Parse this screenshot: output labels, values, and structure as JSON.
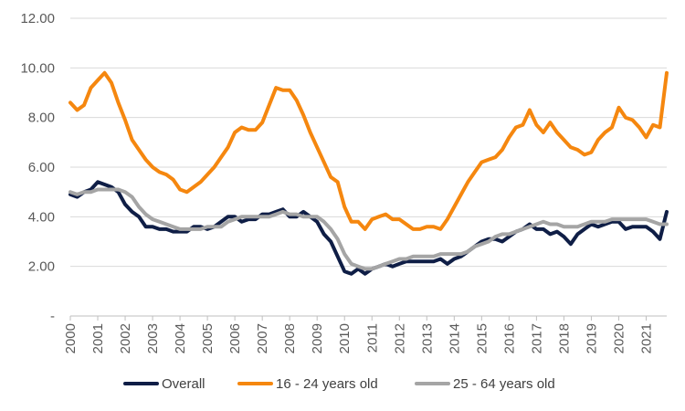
{
  "chart_data": {
    "type": "line",
    "title": "",
    "xlabel": "",
    "ylabel": "",
    "xlim": [
      2000,
      2021.75
    ],
    "ylim": [
      0,
      12
    ],
    "grid": "horizontal",
    "legend_position": "bottom",
    "y_tick_labels": [
      "-",
      "2.00",
      "4.00",
      "6.00",
      "8.00",
      "10.00",
      "12.00"
    ],
    "y_tick_values": [
      0,
      2,
      4,
      6,
      8,
      10,
      12
    ],
    "x_tick_labels": [
      "2000",
      "2001",
      "2002",
      "2003",
      "2004",
      "2005",
      "2006",
      "2007",
      "2008",
      "2009",
      "2010",
      "2011",
      "2012",
      "2013",
      "2014",
      "2015",
      "2016",
      "2017",
      "2018",
      "2019",
      "2020",
      "2021"
    ],
    "series": [
      {
        "name": "Overall",
        "color": "#0f1e46",
        "x": [
          2000,
          2000.25,
          2000.5,
          2000.75,
          2001,
          2001.25,
          2001.5,
          2001.75,
          2002,
          2002.25,
          2002.5,
          2002.75,
          2003,
          2003.25,
          2003.5,
          2003.75,
          2004,
          2004.25,
          2004.5,
          2004.75,
          2005,
          2005.25,
          2005.5,
          2005.75,
          2006,
          2006.25,
          2006.5,
          2006.75,
          2007,
          2007.25,
          2007.5,
          2007.75,
          2008,
          2008.25,
          2008.5,
          2008.75,
          2009,
          2009.25,
          2009.5,
          2009.75,
          2010,
          2010.25,
          2010.5,
          2010.75,
          2011,
          2011.25,
          2011.5,
          2011.75,
          2012,
          2012.25,
          2012.5,
          2012.75,
          2013,
          2013.25,
          2013.5,
          2013.75,
          2014,
          2014.25,
          2014.5,
          2014.75,
          2015,
          2015.25,
          2015.5,
          2015.75,
          2016,
          2016.25,
          2016.5,
          2016.75,
          2017,
          2017.25,
          2017.5,
          2017.75,
          2018,
          2018.25,
          2018.5,
          2018.75,
          2019,
          2019.25,
          2019.5,
          2019.75,
          2020,
          2020.25,
          2020.5,
          2020.75,
          2021,
          2021.25,
          2021.5,
          2021.75
        ],
        "values": [
          4.9,
          4.8,
          5.0,
          5.1,
          5.4,
          5.3,
          5.2,
          5.0,
          4.5,
          4.2,
          4.0,
          3.6,
          3.6,
          3.5,
          3.5,
          3.4,
          3.4,
          3.4,
          3.6,
          3.6,
          3.5,
          3.6,
          3.8,
          4.0,
          4.0,
          3.8,
          3.9,
          3.9,
          4.1,
          4.1,
          4.2,
          4.3,
          4.0,
          4.0,
          4.2,
          4.0,
          3.8,
          3.3,
          3.0,
          2.4,
          1.8,
          1.7,
          1.9,
          1.7,
          1.9,
          2.0,
          2.1,
          2.0,
          2.1,
          2.2,
          2.2,
          2.2,
          2.2,
          2.2,
          2.3,
          2.1,
          2.3,
          2.4,
          2.6,
          2.8,
          3.0,
          3.1,
          3.1,
          3.0,
          3.2,
          3.4,
          3.5,
          3.7,
          3.5,
          3.5,
          3.3,
          3.4,
          3.2,
          2.9,
          3.3,
          3.5,
          3.7,
          3.6,
          3.7,
          3.8,
          3.8,
          3.5,
          3.6,
          3.6,
          3.6,
          3.4,
          3.1,
          4.2
        ]
      },
      {
        "name": "16 - 24 years old",
        "color": "#f5870f",
        "x": [
          2000,
          2000.25,
          2000.5,
          2000.75,
          2001,
          2001.25,
          2001.5,
          2001.75,
          2002,
          2002.25,
          2002.5,
          2002.75,
          2003,
          2003.25,
          2003.5,
          2003.75,
          2004,
          2004.25,
          2004.5,
          2004.75,
          2005,
          2005.25,
          2005.5,
          2005.75,
          2006,
          2006.25,
          2006.5,
          2006.75,
          2007,
          2007.25,
          2007.5,
          2007.75,
          2008,
          2008.25,
          2008.5,
          2008.75,
          2009,
          2009.25,
          2009.5,
          2009.75,
          2010,
          2010.25,
          2010.5,
          2010.75,
          2011,
          2011.25,
          2011.5,
          2011.75,
          2012,
          2012.25,
          2012.5,
          2012.75,
          2013,
          2013.25,
          2013.5,
          2013.75,
          2014,
          2014.25,
          2014.5,
          2014.75,
          2015,
          2015.25,
          2015.5,
          2015.75,
          2016,
          2016.25,
          2016.5,
          2016.75,
          2017,
          2017.25,
          2017.5,
          2017.75,
          2018,
          2018.25,
          2018.5,
          2018.75,
          2019,
          2019.25,
          2019.5,
          2019.75,
          2020,
          2020.25,
          2020.5,
          2020.75,
          2021,
          2021.25,
          2021.5,
          2021.75
        ],
        "values": [
          8.6,
          8.3,
          8.5,
          9.2,
          9.5,
          9.8,
          9.4,
          8.6,
          7.9,
          7.1,
          6.7,
          6.3,
          6.0,
          5.8,
          5.7,
          5.5,
          5.1,
          5.0,
          5.2,
          5.4,
          5.7,
          6.0,
          6.4,
          6.8,
          7.4,
          7.6,
          7.5,
          7.5,
          7.8,
          8.5,
          9.2,
          9.1,
          9.1,
          8.7,
          8.1,
          7.4,
          6.8,
          6.2,
          5.6,
          5.4,
          4.4,
          3.8,
          3.8,
          3.5,
          3.9,
          4.0,
          4.1,
          3.9,
          3.9,
          3.7,
          3.5,
          3.5,
          3.6,
          3.6,
          3.5,
          3.9,
          4.4,
          4.9,
          5.4,
          5.8,
          6.2,
          6.3,
          6.4,
          6.7,
          7.2,
          7.6,
          7.7,
          8.3,
          7.7,
          7.4,
          7.8,
          7.4,
          7.1,
          6.8,
          6.7,
          6.5,
          6.6,
          7.1,
          7.4,
          7.6,
          8.4,
          8.0,
          7.9,
          7.6,
          7.2,
          7.7,
          7.6,
          9.8
        ]
      },
      {
        "name": "25 - 64 years old",
        "color": "#a5a5a5",
        "x": [
          2000,
          2000.25,
          2000.5,
          2000.75,
          2001,
          2001.25,
          2001.5,
          2001.75,
          2002,
          2002.25,
          2002.5,
          2002.75,
          2003,
          2003.25,
          2003.5,
          2003.75,
          2004,
          2004.25,
          2004.5,
          2004.75,
          2005,
          2005.25,
          2005.5,
          2005.75,
          2006,
          2006.25,
          2006.5,
          2006.75,
          2007,
          2007.25,
          2007.5,
          2007.75,
          2008,
          2008.25,
          2008.5,
          2008.75,
          2009,
          2009.25,
          2009.5,
          2009.75,
          2010,
          2010.25,
          2010.5,
          2010.75,
          2011,
          2011.25,
          2011.5,
          2011.75,
          2012,
          2012.25,
          2012.5,
          2012.75,
          2013,
          2013.25,
          2013.5,
          2013.75,
          2014,
          2014.25,
          2014.5,
          2014.75,
          2015,
          2015.25,
          2015.5,
          2015.75,
          2016,
          2016.25,
          2016.5,
          2016.75,
          2017,
          2017.25,
          2017.5,
          2017.75,
          2018,
          2018.25,
          2018.5,
          2018.75,
          2019,
          2019.25,
          2019.5,
          2019.75,
          2020,
          2020.25,
          2020.5,
          2020.75,
          2021,
          2021.25,
          2021.5,
          2021.75
        ],
        "values": [
          5.0,
          4.9,
          5.0,
          5.0,
          5.1,
          5.1,
          5.1,
          5.1,
          5.0,
          4.8,
          4.4,
          4.1,
          3.9,
          3.8,
          3.7,
          3.6,
          3.5,
          3.5,
          3.5,
          3.5,
          3.6,
          3.6,
          3.6,
          3.8,
          3.9,
          4.0,
          4.0,
          4.0,
          4.0,
          4.0,
          4.1,
          4.2,
          4.1,
          4.1,
          4.0,
          4.0,
          4.0,
          3.8,
          3.5,
          3.1,
          2.5,
          2.1,
          2.0,
          1.9,
          1.9,
          2.0,
          2.1,
          2.2,
          2.3,
          2.3,
          2.4,
          2.4,
          2.4,
          2.4,
          2.5,
          2.5,
          2.5,
          2.5,
          2.6,
          2.8,
          2.9,
          3.0,
          3.2,
          3.3,
          3.3,
          3.4,
          3.5,
          3.6,
          3.7,
          3.8,
          3.7,
          3.7,
          3.6,
          3.6,
          3.6,
          3.7,
          3.8,
          3.8,
          3.8,
          3.9,
          3.9,
          3.9,
          3.9,
          3.9,
          3.9,
          3.8,
          3.7,
          3.7
        ]
      }
    ]
  }
}
